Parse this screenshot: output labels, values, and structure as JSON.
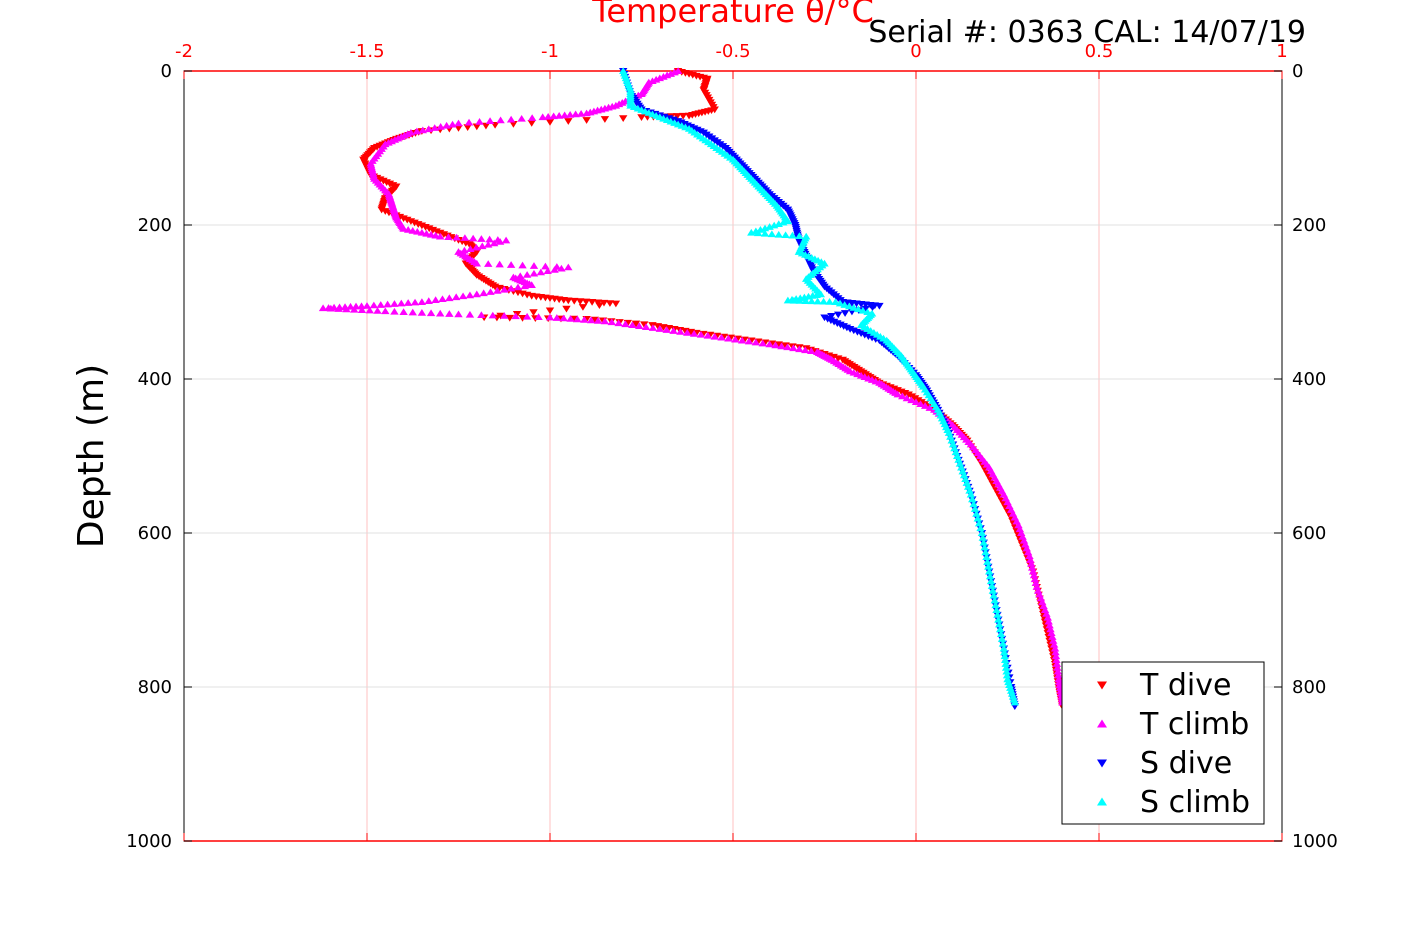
{
  "chart_data": {
    "type": "scatter",
    "title": "Temperature θ/°C",
    "annotation": "Serial #: 0363  CAL: 14/07/19",
    "xlabel": "Temperature θ/°C",
    "ylabel": "Depth (m)",
    "xlim": [
      -2,
      1
    ],
    "ylim": [
      1000,
      0
    ],
    "y_reversed": true,
    "grid": true,
    "legend_position": "bottom-right",
    "x_ticks": [
      "-2",
      "-1.5",
      "-1",
      "-0.5",
      "0",
      "0.5",
      "1"
    ],
    "y_ticks": [
      "0",
      "200",
      "400",
      "600",
      "800",
      "1000"
    ],
    "series": [
      {
        "name": "T dive",
        "color": "#ff0000",
        "marker": "triangle-down",
        "points": [
          [
            -0.65,
            0
          ],
          [
            -0.57,
            10
          ],
          [
            -0.58,
            25
          ],
          [
            -0.55,
            50
          ],
          [
            -0.62,
            58
          ],
          [
            -0.75,
            60
          ],
          [
            -1.15,
            70
          ],
          [
            -1.35,
            78
          ],
          [
            -1.42,
            88
          ],
          [
            -1.48,
            100
          ],
          [
            -1.51,
            115
          ],
          [
            -1.49,
            135
          ],
          [
            -1.42,
            150
          ],
          [
            -1.45,
            165
          ],
          [
            -1.46,
            180
          ],
          [
            -1.38,
            195
          ],
          [
            -1.3,
            210
          ],
          [
            -1.22,
            225
          ],
          [
            -1.2,
            235
          ],
          [
            -1.23,
            250
          ],
          [
            -1.2,
            265
          ],
          [
            -1.15,
            280
          ],
          [
            -1.05,
            292
          ],
          [
            -0.95,
            298
          ],
          [
            -0.82,
            302
          ],
          [
            -1.18,
            320
          ],
          [
            -0.9,
            322
          ],
          [
            -0.72,
            330
          ],
          [
            -0.6,
            340
          ],
          [
            -0.45,
            350
          ],
          [
            -0.3,
            360
          ],
          [
            -0.2,
            375
          ],
          [
            -0.15,
            390
          ],
          [
            -0.1,
            405
          ],
          [
            -0.02,
            420
          ],
          [
            0.05,
            440
          ],
          [
            0.1,
            460
          ],
          [
            0.14,
            480
          ],
          [
            0.18,
            510
          ],
          [
            0.22,
            545
          ],
          [
            0.26,
            580
          ],
          [
            0.29,
            615
          ],
          [
            0.32,
            650
          ],
          [
            0.34,
            690
          ],
          [
            0.36,
            730
          ],
          [
            0.38,
            770
          ],
          [
            0.39,
            800
          ],
          [
            0.4,
            825
          ]
        ]
      },
      {
        "name": "T climb",
        "color": "#ff00ff",
        "marker": "triangle-up",
        "points": [
          [
            -0.65,
            0
          ],
          [
            -0.73,
            15
          ],
          [
            -0.75,
            30
          ],
          [
            -0.82,
            45
          ],
          [
            -0.9,
            55
          ],
          [
            -1.02,
            60
          ],
          [
            -1.25,
            68
          ],
          [
            -1.38,
            80
          ],
          [
            -1.45,
            95
          ],
          [
            -1.49,
            120
          ],
          [
            -1.48,
            140
          ],
          [
            -1.44,
            160
          ],
          [
            -1.43,
            175
          ],
          [
            -1.42,
            190
          ],
          [
            -1.4,
            205
          ],
          [
            -1.3,
            215
          ],
          [
            -1.12,
            220
          ],
          [
            -1.25,
            235
          ],
          [
            -1.2,
            250
          ],
          [
            -0.95,
            255
          ],
          [
            -1.1,
            268
          ],
          [
            -1.05,
            278
          ],
          [
            -1.2,
            290
          ],
          [
            -1.35,
            300
          ],
          [
            -1.5,
            305
          ],
          [
            -1.62,
            308
          ],
          [
            -1.45,
            312
          ],
          [
            -1.25,
            316
          ],
          [
            -1.0,
            320
          ],
          [
            -0.85,
            325
          ],
          [
            -0.7,
            335
          ],
          [
            -0.55,
            345
          ],
          [
            -0.4,
            355
          ],
          [
            -0.27,
            365
          ],
          [
            -0.23,
            375
          ],
          [
            -0.18,
            390
          ],
          [
            -0.1,
            405
          ],
          [
            -0.05,
            420
          ],
          [
            0.05,
            440
          ],
          [
            0.1,
            460
          ],
          [
            0.15,
            485
          ],
          [
            0.2,
            515
          ],
          [
            0.24,
            550
          ],
          [
            0.28,
            590
          ],
          [
            0.31,
            630
          ],
          [
            0.33,
            670
          ],
          [
            0.36,
            710
          ],
          [
            0.38,
            750
          ],
          [
            0.39,
            790
          ],
          [
            0.4,
            820
          ]
        ]
      },
      {
        "name": "S dive",
        "color": "#0000ff",
        "marker": "triangle-down",
        "points": [
          [
            -0.8,
            0
          ],
          [
            -0.78,
            30
          ],
          [
            -0.75,
            50
          ],
          [
            -0.65,
            65
          ],
          [
            -0.58,
            80
          ],
          [
            -0.52,
            100
          ],
          [
            -0.48,
            120
          ],
          [
            -0.44,
            140
          ],
          [
            -0.4,
            160
          ],
          [
            -0.35,
            180
          ],
          [
            -0.33,
            200
          ],
          [
            -0.32,
            220
          ],
          [
            -0.3,
            240
          ],
          [
            -0.28,
            260
          ],
          [
            -0.25,
            280
          ],
          [
            -0.2,
            300
          ],
          [
            -0.1,
            305
          ],
          [
            -0.25,
            320
          ],
          [
            -0.18,
            335
          ],
          [
            -0.1,
            350
          ],
          [
            -0.05,
            370
          ],
          [
            0.0,
            395
          ],
          [
            0.03,
            415
          ],
          [
            0.06,
            440
          ],
          [
            0.09,
            470
          ],
          [
            0.12,
            510
          ],
          [
            0.15,
            550
          ],
          [
            0.18,
            600
          ],
          [
            0.2,
            650
          ],
          [
            0.22,
            700
          ],
          [
            0.24,
            750
          ],
          [
            0.26,
            800
          ],
          [
            0.27,
            825
          ]
        ]
      },
      {
        "name": "S climb",
        "color": "#00ffff",
        "marker": "triangle-up",
        "points": [
          [
            -0.8,
            0
          ],
          [
            -0.78,
            25
          ],
          [
            -0.78,
            45
          ],
          [
            -0.7,
            60
          ],
          [
            -0.62,
            75
          ],
          [
            -0.56,
            95
          ],
          [
            -0.5,
            115
          ],
          [
            -0.46,
            135
          ],
          [
            -0.42,
            155
          ],
          [
            -0.38,
            175
          ],
          [
            -0.35,
            195
          ],
          [
            -0.45,
            210
          ],
          [
            -0.3,
            215
          ],
          [
            -0.32,
            235
          ],
          [
            -0.25,
            250
          ],
          [
            -0.3,
            270
          ],
          [
            -0.26,
            290
          ],
          [
            -0.35,
            298
          ],
          [
            -0.22,
            300
          ],
          [
            -0.12,
            315
          ],
          [
            -0.15,
            330
          ],
          [
            -0.08,
            350
          ],
          [
            -0.04,
            370
          ],
          [
            -0.01,
            390
          ],
          [
            0.02,
            410
          ],
          [
            0.06,
            440
          ],
          [
            0.09,
            470
          ],
          [
            0.12,
            510
          ],
          [
            0.15,
            550
          ],
          [
            0.18,
            600
          ],
          [
            0.2,
            650
          ],
          [
            0.22,
            700
          ],
          [
            0.24,
            750
          ],
          [
            0.25,
            790
          ],
          [
            0.27,
            820
          ]
        ]
      }
    ]
  }
}
